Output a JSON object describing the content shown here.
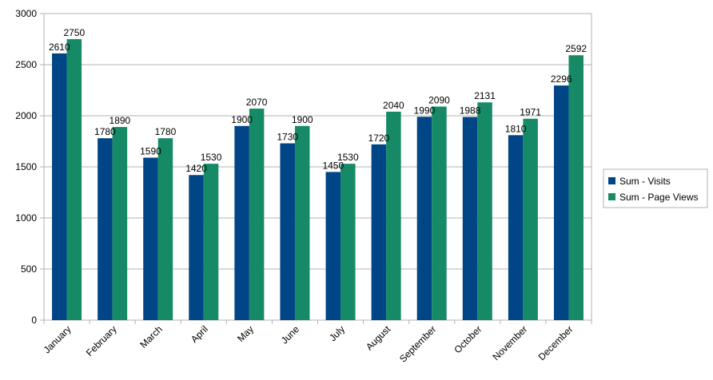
{
  "chart_data": {
    "type": "bar",
    "title": "",
    "xlabel": "",
    "ylabel": "",
    "ylim": [
      0,
      3000
    ],
    "yticks": [
      0,
      500,
      1000,
      1500,
      2000,
      2500,
      3000
    ],
    "grid": true,
    "legend_position": "right",
    "categories": [
      "January",
      "February",
      "March",
      "April",
      "May",
      "June",
      "July",
      "August",
      "September",
      "October",
      "November",
      "December"
    ],
    "series": [
      {
        "name": "Sum - Visits",
        "color": "#004586",
        "values": [
          2610,
          1780,
          1590,
          1420,
          1900,
          1730,
          1450,
          1720,
          1990,
          1988,
          1810,
          2296
        ]
      },
      {
        "name": "Sum - Page Views",
        "color": "#168a66",
        "values": [
          2750,
          1890,
          1780,
          1530,
          2070,
          1900,
          1530,
          2040,
          2090,
          2131,
          1971,
          2592
        ]
      }
    ]
  }
}
